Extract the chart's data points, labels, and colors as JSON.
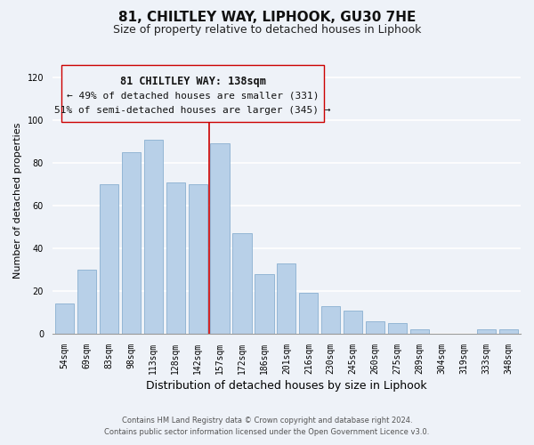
{
  "title_line1": "81, CHILTLEY WAY, LIPHOOK, GU30 7HE",
  "title_line2": "Size of property relative to detached houses in Liphook",
  "xlabel": "Distribution of detached houses by size in Liphook",
  "ylabel": "Number of detached properties",
  "categories": [
    "54sqm",
    "69sqm",
    "83sqm",
    "98sqm",
    "113sqm",
    "128sqm",
    "142sqm",
    "157sqm",
    "172sqm",
    "186sqm",
    "201sqm",
    "216sqm",
    "230sqm",
    "245sqm",
    "260sqm",
    "275sqm",
    "289sqm",
    "304sqm",
    "319sqm",
    "333sqm",
    "348sqm"
  ],
  "values": [
    14,
    30,
    70,
    85,
    91,
    71,
    70,
    89,
    47,
    28,
    33,
    19,
    13,
    11,
    6,
    5,
    2,
    0,
    0,
    2,
    2
  ],
  "bar_color": "#b8d0e8",
  "bar_edgecolor": "#8ab0d0",
  "bar_linewidth": 0.6,
  "vline_x": 6.5,
  "vline_color": "#cc0000",
  "vline_linewidth": 1.2,
  "annotation_text_line1": "81 CHILTLEY WAY: 138sqm",
  "annotation_text_line2": "← 49% of detached houses are smaller (331)",
  "annotation_text_line3": "51% of semi-detached houses are larger (345) →",
  "ylim": [
    0,
    125
  ],
  "yticks": [
    0,
    20,
    40,
    60,
    80,
    100,
    120
  ],
  "background_color": "#eef2f8",
  "footer_line1": "Contains HM Land Registry data © Crown copyright and database right 2024.",
  "footer_line2": "Contains public sector information licensed under the Open Government Licence v3.0.",
  "title_fontsize": 11,
  "subtitle_fontsize": 9,
  "xlabel_fontsize": 9,
  "ylabel_fontsize": 8,
  "tick_fontsize": 7,
  "footer_fontsize": 6,
  "annotation_fontsize": 8
}
